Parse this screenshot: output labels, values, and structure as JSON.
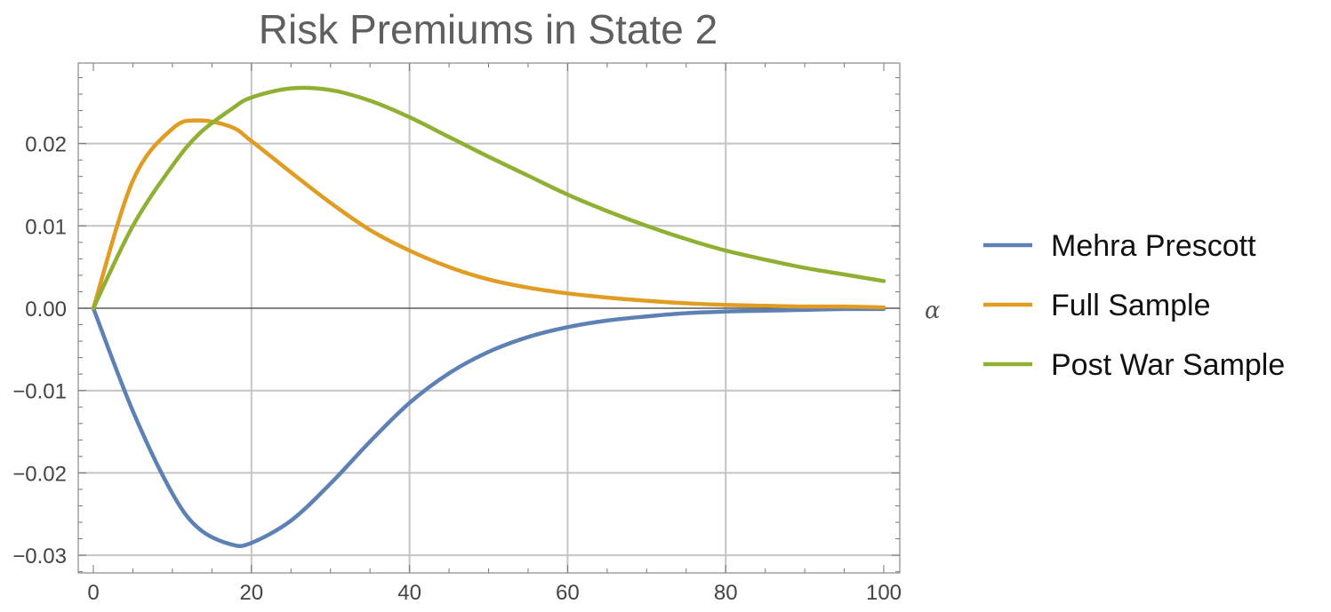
{
  "chart_data": {
    "type": "line",
    "title": "Risk Premiums in State 2",
    "xlabel": "α",
    "ylabel": "",
    "xlim": [
      0,
      100
    ],
    "ylim": [
      -0.032,
      0.03
    ],
    "grid": true,
    "legend_position": "right",
    "x_ticks": [
      0,
      20,
      40,
      60,
      80,
      100
    ],
    "x_tick_labels": [
      "0",
      "20",
      "40",
      "60",
      "80",
      "100"
    ],
    "y_ticks": [
      -0.03,
      -0.02,
      -0.01,
      0.0,
      0.01,
      0.02
    ],
    "y_tick_labels": [
      "−0.03",
      "−0.02",
      "−0.01",
      "0.00",
      "0.01",
      "0.02"
    ],
    "x": [
      0,
      5,
      10,
      13.4,
      17.5,
      20,
      25,
      30,
      35,
      40,
      45,
      50,
      55,
      60,
      65,
      70,
      75,
      80,
      85,
      90,
      95,
      100
    ],
    "series": [
      {
        "name": "Mehra Prescott",
        "color": "#5e81b5",
        "values": [
          0.0,
          -0.0125,
          -0.0225,
          -0.0268,
          -0.0287,
          -0.0285,
          -0.0258,
          -0.0213,
          -0.0162,
          -0.0115,
          -0.0079,
          -0.0053,
          -0.0035,
          -0.0023,
          -0.0015,
          -0.001,
          -0.0006,
          -0.0004,
          -0.0003,
          -0.0002,
          -0.0001,
          -0.0001
        ]
      },
      {
        "name": "Full Sample",
        "color": "#e19c24",
        "values": [
          0.0,
          0.0155,
          0.0218,
          0.0228,
          0.022,
          0.0203,
          0.0165,
          0.0128,
          0.0095,
          0.007,
          0.005,
          0.0035,
          0.0025,
          0.0018,
          0.0013,
          0.0009,
          0.0006,
          0.0004,
          0.0003,
          0.0002,
          0.0002,
          0.0001
        ]
      },
      {
        "name": "Post War Sample",
        "color": "#8fb032",
        "values": [
          0.0,
          0.01,
          0.0173,
          0.0212,
          0.0242,
          0.0256,
          0.0267,
          0.0265,
          0.0252,
          0.0232,
          0.0208,
          0.0184,
          0.0161,
          0.0138,
          0.0118,
          0.01,
          0.0084,
          0.007,
          0.0059,
          0.0049,
          0.0041,
          0.0033
        ]
      }
    ]
  }
}
